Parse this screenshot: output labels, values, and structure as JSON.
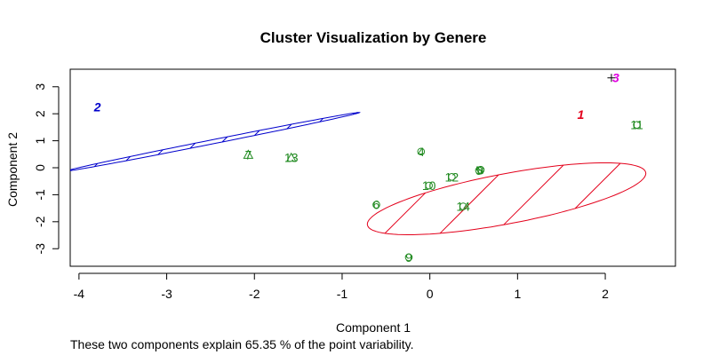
{
  "chart_data": {
    "type": "scatter",
    "title": "Cluster Visualization by Genere",
    "xlabel": "Component 1",
    "ylabel": "Component 2",
    "xlim": [
      -4.1,
      2.8
    ],
    "ylim": [
      -3.65,
      3.65
    ],
    "xticks": [
      -4,
      -3,
      -2,
      -1,
      0,
      1,
      2
    ],
    "yticks": [
      -3,
      -2,
      -1,
      0,
      1,
      2,
      3
    ],
    "grid": false,
    "legend": "none",
    "colors": {
      "cluster1": "#e3001b",
      "cluster2": "#0000cc",
      "cluster3": "#e000e0",
      "points": "#228b22"
    },
    "points": [
      {
        "label": "1",
        "x": 1.72,
        "y": 1.97,
        "cluster": 1,
        "marker": "none"
      },
      {
        "label": "2",
        "x": -3.79,
        "y": 2.25,
        "cluster": 2,
        "marker": "none"
      },
      {
        "label": "3",
        "x": 2.07,
        "y": 3.33,
        "cluster": 3,
        "marker": "plus"
      },
      {
        "label": "4",
        "x": -0.1,
        "y": 0.6,
        "cluster": 1,
        "marker": "circle"
      },
      {
        "label": "5",
        "x": 0.56,
        "y": -0.1,
        "cluster": 1,
        "marker": "circle"
      },
      {
        "label": "6",
        "x": -0.61,
        "y": -1.37,
        "cluster": 1,
        "marker": "circle"
      },
      {
        "label": "7",
        "x": -2.07,
        "y": 0.48,
        "cluster": 2,
        "marker": "triangle"
      },
      {
        "label": "8",
        "x": 0.58,
        "y": -0.08,
        "cluster": 1,
        "marker": "circle"
      },
      {
        "label": "9",
        "x": -0.24,
        "y": -3.32,
        "cluster": 1,
        "marker": "circle"
      },
      {
        "label": "10",
        "x": -0.01,
        "y": -0.66,
        "cluster": 1,
        "marker": "circle"
      },
      {
        "label": "11",
        "x": 2.36,
        "y": 1.59,
        "cluster": 1,
        "marker": "circle"
      },
      {
        "label": "12",
        "x": 0.25,
        "y": -0.34,
        "cluster": 1,
        "marker": "circle"
      },
      {
        "label": "13",
        "x": -1.58,
        "y": 0.37,
        "cluster": 2,
        "marker": "triangle"
      },
      {
        "label": "14",
        "x": 0.38,
        "y": -1.43,
        "cluster": 1,
        "marker": "circle"
      }
    ],
    "clusters": [
      {
        "id": 1,
        "center": [
          0.875,
          -1.15
        ],
        "semi_major": 1.92,
        "semi_minor": 0.78,
        "angle_deg": 38
      },
      {
        "id": 2,
        "center": [
          -2.47,
          0.965
        ],
        "semi_major": 1.99,
        "semi_minor": 0.065,
        "angle_deg": 33
      }
    ],
    "caption": "These two components explain 65.35 % of the point variability."
  }
}
